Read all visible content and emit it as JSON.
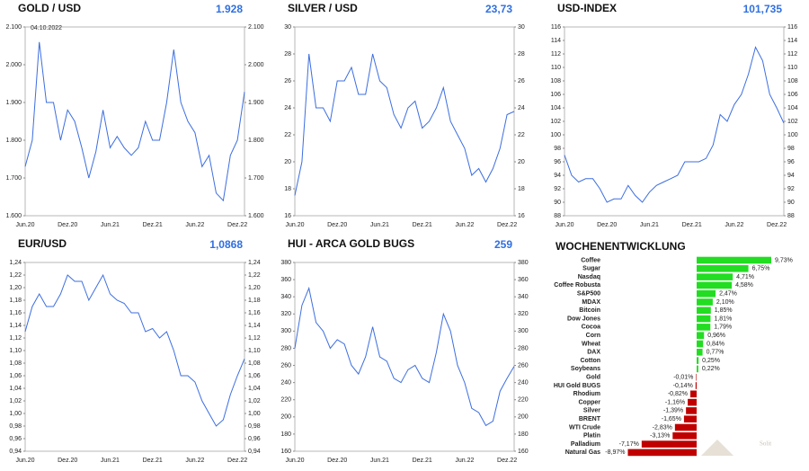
{
  "chart_data": [
    {
      "type": "line",
      "title": "GOLD / USD",
      "current_value": "1.928",
      "annotation": "04.10.2022",
      "color": "#3c6ee0",
      "categories": [
        "Jun.20",
        null,
        null,
        null,
        null,
        null,
        "Dez.20",
        null,
        null,
        null,
        null,
        null,
        "Jun.21",
        null,
        null,
        null,
        null,
        null,
        "Dez.21",
        null,
        null,
        null,
        null,
        null,
        "Jun.22",
        null,
        null,
        null,
        null,
        null,
        "Dez.22",
        null
      ],
      "values": [
        1730,
        1800,
        2060,
        1900,
        1900,
        1800,
        1880,
        1850,
        1780,
        1700,
        1770,
        1880,
        1780,
        1810,
        1780,
        1760,
        1780,
        1850,
        1800,
        1800,
        1900,
        2040,
        1900,
        1850,
        1820,
        1730,
        1760,
        1660,
        1640,
        1760,
        1800,
        1928
      ],
      "ylim": [
        1600,
        2100
      ],
      "yticks": [
        {
          "value": 1600,
          "label": "1.600"
        },
        {
          "value": 1700,
          "label": "1.700"
        },
        {
          "value": 1800,
          "label": "1.800"
        },
        {
          "value": 1900,
          "label": "1.900"
        },
        {
          "value": 2000,
          "label": "2.000"
        },
        {
          "value": 2100,
          "label": "2.100"
        }
      ]
    },
    {
      "type": "line",
      "title": "SILVER / USD",
      "current_value": "23,73",
      "color": "#3c6ee0",
      "categories": [
        "Jun.20",
        null,
        null,
        null,
        null,
        null,
        "Dez.20",
        null,
        null,
        null,
        null,
        null,
        "Jun.21",
        null,
        null,
        null,
        null,
        null,
        "Dez.21",
        null,
        null,
        null,
        null,
        null,
        "Jun.22",
        null,
        null,
        null,
        null,
        null,
        "Dez.22",
        null
      ],
      "values": [
        17.5,
        20,
        28,
        24,
        24,
        23,
        26,
        26,
        27,
        25,
        25,
        28,
        26,
        25.5,
        23.5,
        22.5,
        24,
        24.5,
        22.5,
        23,
        24,
        25.5,
        23,
        22,
        21,
        19,
        19.5,
        18.5,
        19.5,
        21,
        23.5,
        23.73
      ],
      "ylim": [
        16,
        30
      ],
      "yticks": [
        16,
        18,
        20,
        22,
        24,
        26,
        28,
        30
      ]
    },
    {
      "type": "line",
      "title": "USD-INDEX",
      "current_value": "101,735",
      "color": "#3c6ee0",
      "categories": [
        "Jun.20",
        null,
        null,
        null,
        null,
        null,
        "Dez.20",
        null,
        null,
        null,
        null,
        null,
        "Jun.21",
        null,
        null,
        null,
        null,
        null,
        "Dez.21",
        null,
        null,
        null,
        null,
        null,
        "Jun.22",
        null,
        null,
        null,
        null,
        null,
        "Dez.22",
        null
      ],
      "values": [
        97,
        94,
        93,
        93.5,
        93.5,
        92,
        90,
        90.5,
        90.5,
        92.5,
        91,
        90,
        91.5,
        92.5,
        93,
        93.5,
        94,
        96,
        96,
        96,
        96.5,
        98.5,
        103,
        102,
        104.5,
        106,
        109,
        113,
        111,
        106,
        104,
        101.735
      ],
      "ylim": [
        88,
        116
      ],
      "yticks": [
        88,
        90,
        92,
        94,
        96,
        98,
        100,
        102,
        104,
        106,
        108,
        110,
        112,
        114,
        116
      ]
    },
    {
      "type": "line",
      "title": "EUR/USD",
      "current_value": "1,0868",
      "color": "#3c6ee0",
      "categories": [
        "Jun.20",
        null,
        null,
        null,
        null,
        null,
        "Dez.20",
        null,
        null,
        null,
        null,
        null,
        "Jun.21",
        null,
        null,
        null,
        null,
        null,
        "Dez.21",
        null,
        null,
        null,
        null,
        null,
        "Jun.22",
        null,
        null,
        null,
        null,
        null,
        "Dez.22",
        null
      ],
      "values": [
        1.13,
        1.17,
        1.19,
        1.17,
        1.17,
        1.19,
        1.22,
        1.21,
        1.21,
        1.18,
        1.2,
        1.22,
        1.19,
        1.18,
        1.175,
        1.16,
        1.16,
        1.13,
        1.135,
        1.12,
        1.13,
        1.1,
        1.06,
        1.06,
        1.05,
        1.02,
        1.0,
        0.98,
        0.99,
        1.03,
        1.06,
        1.0868
      ],
      "ylim": [
        0.94,
        1.24
      ],
      "yticks": [
        {
          "value": 0.94,
          "label": "0,94"
        },
        {
          "value": 0.96,
          "label": "0,96"
        },
        {
          "value": 0.98,
          "label": "0,98"
        },
        {
          "value": 1.0,
          "label": "1,00"
        },
        {
          "value": 1.02,
          "label": "1,02"
        },
        {
          "value": 1.04,
          "label": "1,04"
        },
        {
          "value": 1.06,
          "label": "1,06"
        },
        {
          "value": 1.08,
          "label": "1,08"
        },
        {
          "value": 1.1,
          "label": "1,10"
        },
        {
          "value": 1.12,
          "label": "1,12"
        },
        {
          "value": 1.14,
          "label": "1,14"
        },
        {
          "value": 1.16,
          "label": "1,16"
        },
        {
          "value": 1.18,
          "label": "1,18"
        },
        {
          "value": 1.2,
          "label": "1,20"
        },
        {
          "value": 1.22,
          "label": "1,22"
        },
        {
          "value": 1.24,
          "label": "1,24"
        }
      ]
    },
    {
      "type": "line",
      "title": "HUI - ARCA GOLD BUGS",
      "current_value": "259",
      "color": "#3c6ee0",
      "categories": [
        "Jun.20",
        null,
        null,
        null,
        null,
        null,
        "Dez.20",
        null,
        null,
        null,
        null,
        null,
        "Jun.21",
        null,
        null,
        null,
        null,
        null,
        "Dez.21",
        null,
        null,
        null,
        null,
        null,
        "Jun.22",
        null,
        null,
        null,
        null,
        null,
        "Dez.22",
        null
      ],
      "values": [
        280,
        330,
        350,
        310,
        300,
        280,
        290,
        285,
        260,
        250,
        270,
        305,
        270,
        265,
        245,
        240,
        255,
        260,
        245,
        240,
        275,
        320,
        300,
        260,
        240,
        210,
        205,
        190,
        195,
        230,
        245,
        259
      ],
      "ylim": [
        160,
        380
      ],
      "yticks": [
        160,
        180,
        200,
        220,
        240,
        260,
        280,
        300,
        320,
        340,
        360,
        380
      ]
    },
    {
      "type": "hbar",
      "title": "WOCHENENTWICKLUNG",
      "watermark": "Solit",
      "positive_color": "#22dd22",
      "negative_color": "#c00000",
      "categories": [
        "Coffee",
        "Sugar",
        "Nasdaq",
        "Coffee Robusta",
        "S&P500",
        "MDAX",
        "Bitcoin",
        "Dow Jones",
        "Cocoa",
        "Corn",
        "Wheat",
        "DAX",
        "Cotton",
        "Soybeans",
        "Gold",
        "HUI Gold BUGS",
        "Rhodium",
        "Copper",
        "Silver",
        "BRENT",
        "WTI Crude",
        "Platin",
        "Palladium",
        "Natural Gas"
      ],
      "values": [
        9.73,
        6.75,
        4.71,
        4.58,
        2.47,
        2.1,
        1.85,
        1.81,
        1.79,
        0.96,
        0.84,
        0.77,
        0.25,
        0.22,
        -0.01,
        -0.14,
        -0.82,
        -1.16,
        -1.39,
        -1.65,
        -2.83,
        -3.13,
        -7.17,
        -8.97
      ],
      "value_labels": [
        "9,73%",
        "6,75%",
        "4,71%",
        "4,58%",
        "2,47%",
        "2,10%",
        "1,85%",
        "1,81%",
        "1,79%",
        "0,96%",
        "0,84%",
        "0,77%",
        "0,25%",
        "0,22%",
        "-0,01%",
        "-0,14%",
        "-0,82%",
        "-1,16%",
        "-1,39%",
        "-1,65%",
        "-2,83%",
        "-3,13%",
        "-7,17%",
        "-8,97%"
      ]
    }
  ]
}
